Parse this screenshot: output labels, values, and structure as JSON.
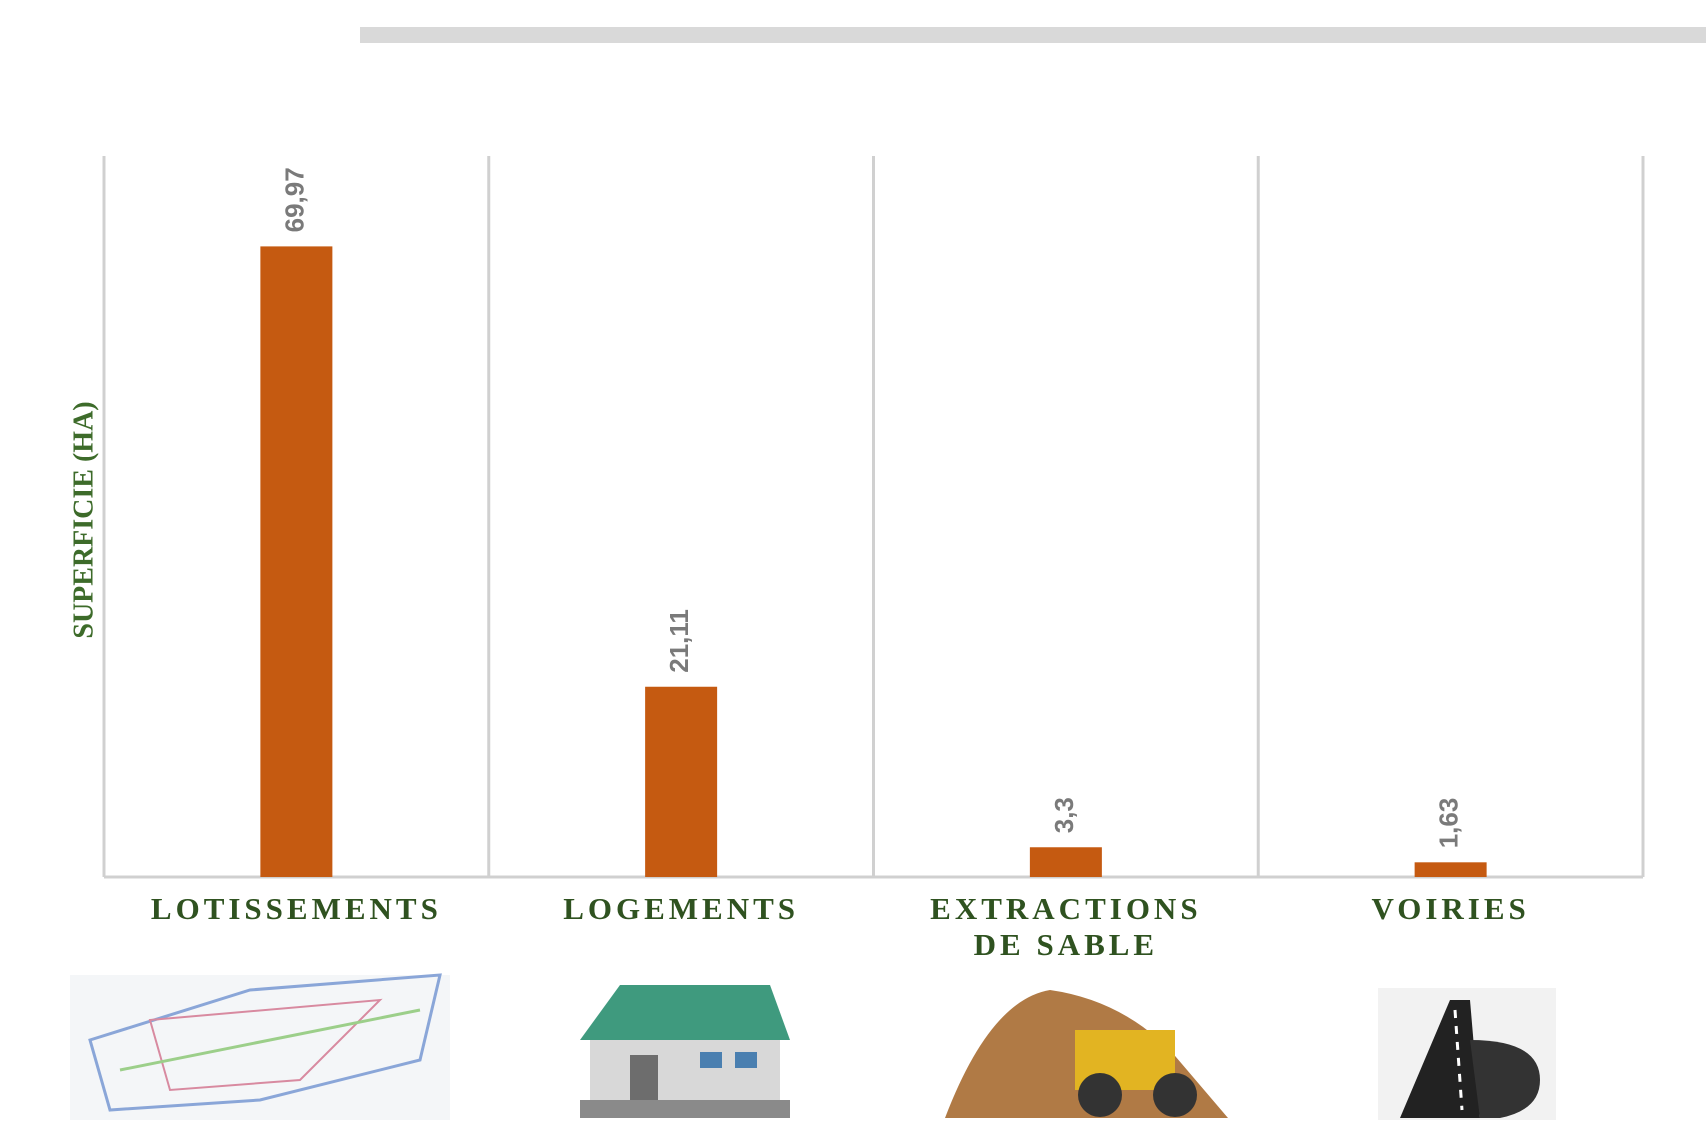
{
  "chart_data": {
    "type": "bar",
    "y_label": "SUPERFICIE (HA)",
    "categories": [
      "LOTISSEMENTS",
      "LOGEMENTS",
      "EXTRACTIONS DE SABLE",
      "VOIRIES"
    ],
    "values": [
      69.97,
      21.11,
      3.3,
      1.63
    ],
    "value_labels": [
      "69,97",
      "21,11",
      "3,3",
      "1,63"
    ],
    "color": "#c55a11",
    "ylim": [
      0,
      80
    ],
    "grid": true
  }
}
